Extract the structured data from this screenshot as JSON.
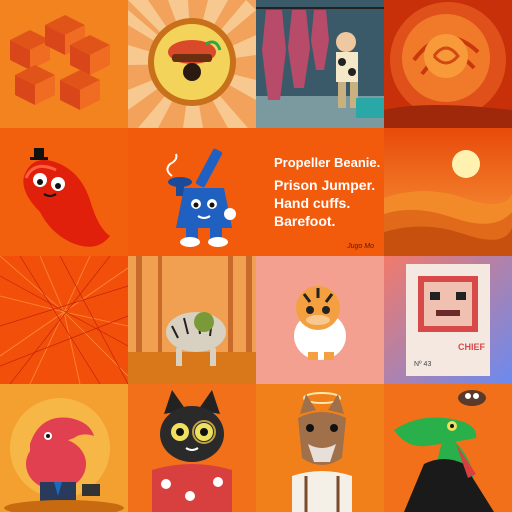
{
  "gallery": {
    "colors": {
      "accent": "#f05a0a",
      "bg": "#e8641a"
    },
    "tiles": [
      {
        "name": "tile-isometric-blocks",
        "icon": "isometric-blocks-art"
      },
      {
        "name": "tile-sunburst-badge",
        "icon": "sunburst-badge-art"
      },
      {
        "name": "tile-butcher-shop",
        "icon": "butcher-shop-art"
      },
      {
        "name": "tile-orange-rose",
        "icon": "rose-art"
      },
      {
        "name": "tile-red-bean-character",
        "icon": "red-bean-art"
      },
      {
        "name": "tile-bong-character",
        "icon": "bong-character-art"
      },
      {
        "name": "tile-desert-sunset",
        "icon": "desert-sunset-art"
      },
      {
        "name": "tile-red-lines",
        "icon": "red-lines-art"
      },
      {
        "name": "tile-autumn-forest",
        "icon": "autumn-forest-art"
      },
      {
        "name": "tile-tiger-duck",
        "icon": "tiger-duck-art"
      },
      {
        "name": "tile-pixel-poster",
        "icon": "pixel-poster-art"
      },
      {
        "name": "tile-dolphin-suit",
        "icon": "dolphin-suit-art"
      },
      {
        "name": "tile-black-cat",
        "icon": "black-cat-art"
      },
      {
        "name": "tile-wolf-halo",
        "icon": "wolf-halo-art"
      },
      {
        "name": "tile-green-lizard",
        "icon": "green-lizard-art"
      }
    ],
    "featured": {
      "lines": [
        "Propeller Beanie.",
        "Prison Jumper.",
        "Hand cuffs.",
        "Barefoot."
      ],
      "signature": "Jugo Mo"
    },
    "poster": {
      "title": "CHIEF",
      "number": "Nº 43"
    }
  }
}
